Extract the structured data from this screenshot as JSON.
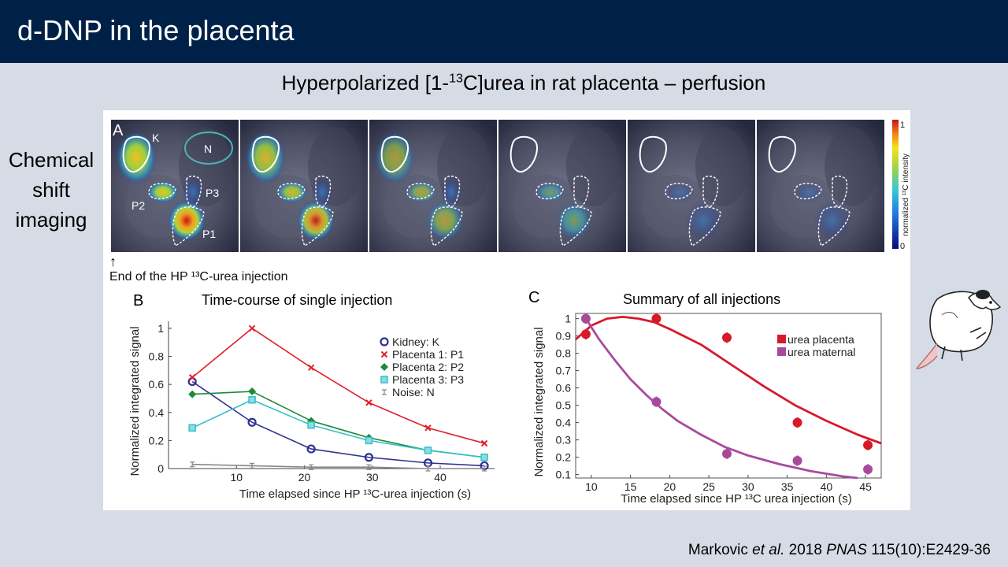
{
  "slide": {
    "title": "d-DNP in the placenta",
    "subtitle_pre": "Hyperpolarized [1-",
    "subtitle_sup": "13",
    "subtitle_post": "C]urea in rat placenta – perfusion",
    "side_label": "Chemical shift imaging",
    "citation_author": "Markovic ",
    "citation_etal": "et al.",
    "citation_year": " 2018 ",
    "citation_journal": "PNAS",
    "citation_ref": " 115(10):E2429-36"
  },
  "panel_a": {
    "letter": "A",
    "labels": [
      "K",
      "N",
      "P2",
      "P3",
      "P1"
    ],
    "caption": "End of the HP ¹³C-urea injection",
    "arrow": "↑",
    "colorbar_label": "normalized ¹³C intensity",
    "colorbar_max": "1",
    "colorbar_min": "0"
  },
  "chart_data": [
    {
      "type": "line",
      "panel": "B",
      "title": "Time-course of single injection",
      "xlabel": "Time elapsed since HP ¹³C-urea injection (s)",
      "ylabel": "Normalized integrated signal",
      "xlim": [
        0,
        48
      ],
      "ylim": [
        0,
        1.05
      ],
      "xticks": [
        10,
        20,
        30,
        40
      ],
      "yticks": [
        0,
        0.2,
        0.4,
        0.6,
        0.8,
        1
      ],
      "ytick_labels": [
        "0",
        "0.2",
        "0.4",
        "0.6",
        "0.8",
        "1"
      ],
      "x": [
        3.5,
        12.3,
        21,
        29.5,
        38.2,
        46.5
      ],
      "series": [
        {
          "name": "Kidney: K",
          "marker": "circle-open",
          "color": "#2e3192",
          "values": [
            0.62,
            0.33,
            0.14,
            0.08,
            0.04,
            0.02
          ]
        },
        {
          "name": "Placenta 1: P1",
          "marker": "x",
          "color": "#e0202a",
          "values": [
            0.65,
            1.0,
            0.72,
            0.47,
            0.29,
            0.18
          ]
        },
        {
          "name": "Placenta 2: P2",
          "marker": "diamond",
          "color": "#1d8a3a",
          "values": [
            0.53,
            0.55,
            0.34,
            0.22,
            0.13,
            0.08
          ]
        },
        {
          "name": "Placenta 3: P3",
          "marker": "square-open",
          "color": "#33c0c8",
          "values": [
            0.29,
            0.49,
            0.31,
            0.2,
            0.13,
            0.08
          ]
        },
        {
          "name": "Noise: N",
          "marker": "errorbar",
          "color": "#888888",
          "values": [
            0.03,
            0.02,
            0.01,
            0.01,
            0.0,
            0.0
          ]
        }
      ]
    },
    {
      "type": "scatter",
      "panel": "C",
      "title": "Summary of all injections",
      "xlabel": "Time elapsed since HP ¹³C urea injection (s)",
      "ylabel": "Normalized integrated signal",
      "xlim": [
        8,
        47
      ],
      "ylim": [
        0.08,
        1.03
      ],
      "xticks": [
        10,
        15,
        20,
        25,
        30,
        35,
        40,
        45
      ],
      "yticks": [
        0.1,
        0.2,
        0.3,
        0.4,
        0.5,
        0.6,
        0.7,
        0.8,
        0.9,
        1
      ],
      "ytick_labels": [
        "0.1",
        "0.2",
        "0.3",
        "0.4",
        "0.5",
        "0.6",
        "0.7",
        "0.8",
        "0.9",
        "1"
      ],
      "series": [
        {
          "name": "urea placenta",
          "color": "#d7192a",
          "x": [
            9.3,
            18.3,
            27.3,
            36.3,
            45.3
          ],
          "values": [
            0.91,
            1.0,
            0.89,
            0.4,
            0.27
          ],
          "err": 0.03,
          "fit_x": [
            8,
            10,
            12,
            14,
            16,
            18,
            20,
            24,
            28,
            32,
            36,
            40,
            44,
            47
          ],
          "fit_y": [
            0.88,
            0.96,
            1.0,
            1.01,
            1.0,
            0.98,
            0.94,
            0.85,
            0.73,
            0.61,
            0.5,
            0.41,
            0.33,
            0.28
          ]
        },
        {
          "name": "urea maternal",
          "color": "#a84a9c",
          "x": [
            9.3,
            18.3,
            27.3,
            36.3,
            45.3
          ],
          "values": [
            1.0,
            0.52,
            0.22,
            0.18,
            0.13
          ],
          "err": 0.03,
          "fit_x": [
            9.3,
            11,
            13,
            15,
            17,
            19,
            21,
            24,
            27,
            30,
            34,
            38,
            42,
            44
          ],
          "fit_y": [
            1.0,
            0.88,
            0.76,
            0.65,
            0.56,
            0.48,
            0.41,
            0.33,
            0.26,
            0.21,
            0.16,
            0.12,
            0.09,
            0.08
          ]
        }
      ]
    }
  ],
  "colors": {
    "title_bar": "#002147",
    "background": "#d6dce5"
  }
}
